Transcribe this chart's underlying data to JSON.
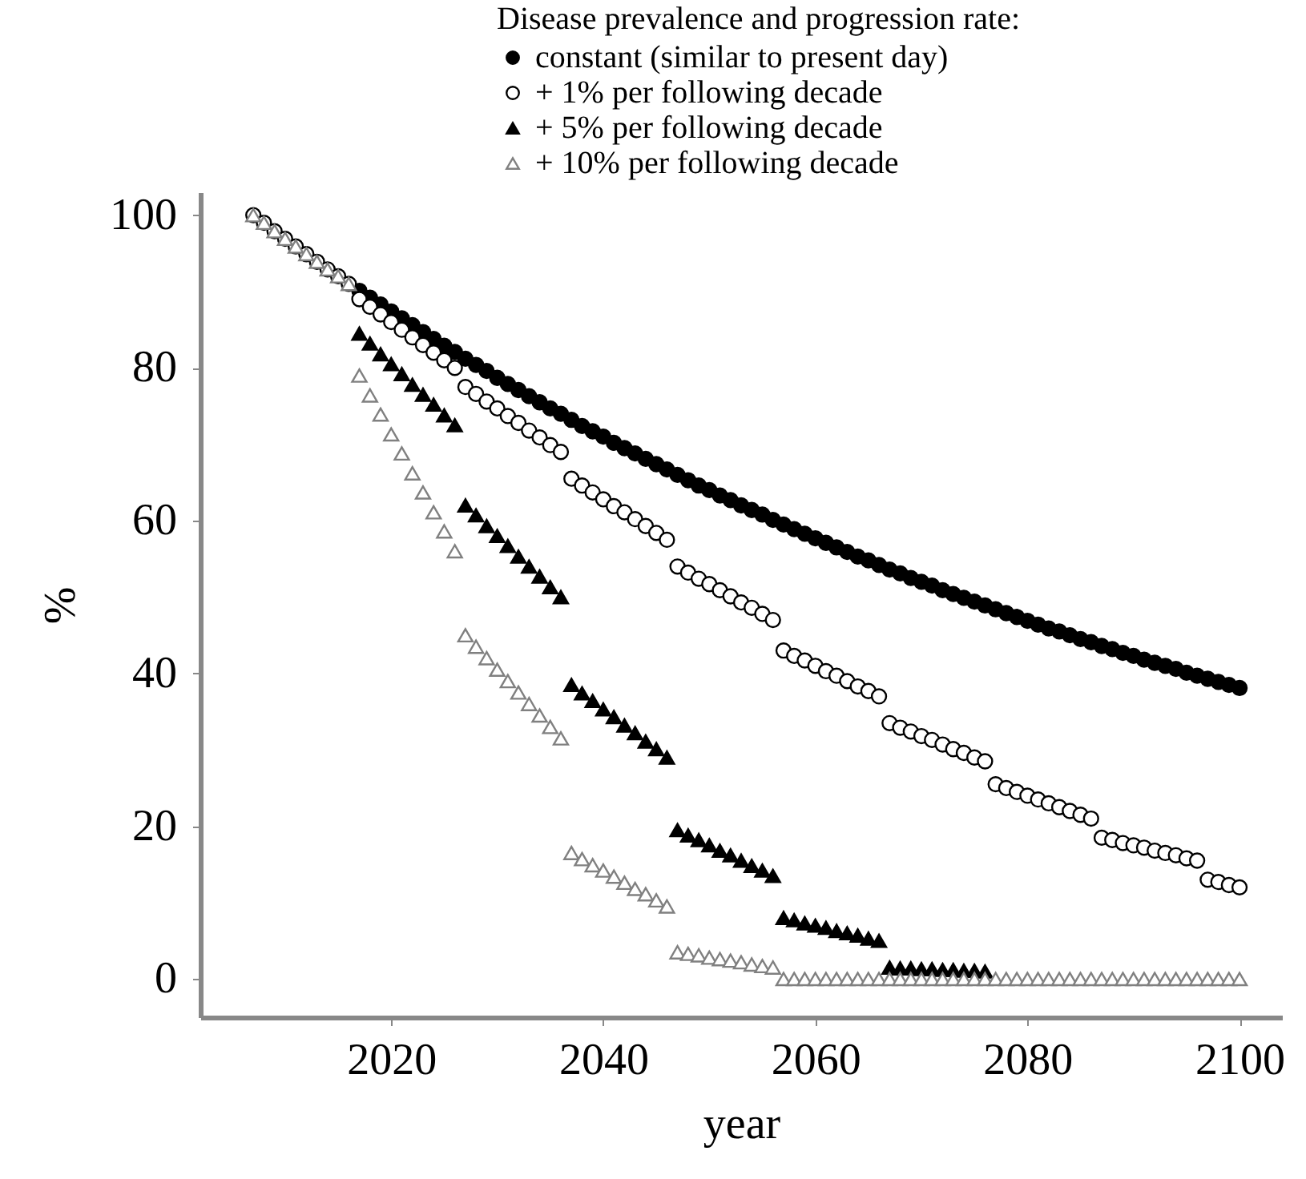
{
  "chart_data": {
    "type": "scatter",
    "xlabel": "year",
    "ylabel": "%",
    "legend_title": "Disease prevalence and progression rate:",
    "legend": "top right",
    "grid": false,
    "x": [
      2007,
      2008,
      2009,
      2010,
      2011,
      2012,
      2013,
      2014,
      2015,
      2016,
      2017,
      2018,
      2019,
      2020,
      2021,
      2022,
      2023,
      2024,
      2025,
      2026,
      2027,
      2028,
      2029,
      2030,
      2031,
      2032,
      2033,
      2034,
      2035,
      2036,
      2037,
      2038,
      2039,
      2040,
      2041,
      2042,
      2043,
      2044,
      2045,
      2046,
      2047,
      2048,
      2049,
      2050,
      2051,
      2052,
      2053,
      2054,
      2055,
      2056,
      2057,
      2058,
      2059,
      2060,
      2061,
      2062,
      2063,
      2064,
      2065,
      2066,
      2067,
      2068,
      2069,
      2070,
      2071,
      2072,
      2073,
      2074,
      2075,
      2076,
      2077,
      2078,
      2079,
      2080,
      2081,
      2082,
      2083,
      2084,
      2085,
      2086,
      2087,
      2088,
      2089,
      2090,
      2091,
      2092,
      2093,
      2094,
      2095,
      2096,
      2097,
      2098,
      2099,
      2100
    ],
    "xlim": [
      2002,
      2104
    ],
    "xticks": [
      2020,
      2040,
      2060,
      2080,
      2100
    ],
    "ylim": [
      -5,
      103
    ],
    "yticks": [
      0,
      20,
      40,
      60,
      80,
      100
    ],
    "series": [
      {
        "name": "constant (similar to present day)",
        "color": "#000000",
        "marker": "circle",
        "values": [
          null,
          null,
          null,
          null,
          null,
          null,
          null,
          null,
          null,
          null,
          90.1,
          89.2,
          88.3,
          87.4,
          86.5,
          85.6,
          84.7,
          83.8,
          82.9,
          82.1,
          81.2,
          80.4,
          79.6,
          78.7,
          77.9,
          77.1,
          76.3,
          75.5,
          74.7,
          74.0,
          73.2,
          72.4,
          71.7,
          71.0,
          70.2,
          69.5,
          68.8,
          68.1,
          67.4,
          66.7,
          66.0,
          65.3,
          64.6,
          64.0,
          63.3,
          62.7,
          62.0,
          61.4,
          60.8,
          60.1,
          59.5,
          58.9,
          58.3,
          57.7,
          57.1,
          56.5,
          55.9,
          55.3,
          54.8,
          54.2,
          53.6,
          53.1,
          52.5,
          52.0,
          51.5,
          50.9,
          50.4,
          49.9,
          49.4,
          48.9,
          48.4,
          47.9,
          47.4,
          46.9,
          46.4,
          45.9,
          45.5,
          45.0,
          44.5,
          44.1,
          43.6,
          43.2,
          42.7,
          42.3,
          41.8,
          41.4,
          41.0,
          40.6,
          40.1,
          39.7,
          39.3,
          38.9,
          38.5,
          38.1
        ]
      },
      {
        "name": "+ 1% per following decade",
        "color": "#000000",
        "marker": "circle",
        "values": [
          100,
          99.0,
          97.9,
          96.9,
          95.9,
          94.9,
          93.9,
          92.9,
          92.0,
          91.0,
          89,
          88,
          87,
          86,
          85,
          84,
          83,
          82,
          81,
          80,
          77.5,
          76.6,
          75.6,
          74.7,
          73.7,
          72.8,
          71.8,
          70.9,
          69.9,
          69.0,
          65.5,
          64.6,
          63.7,
          62.8,
          61.9,
          61.1,
          60.2,
          59.3,
          58.4,
          57.5,
          54.0,
          53.2,
          52.4,
          51.7,
          50.9,
          50.1,
          49.3,
          48.6,
          47.8,
          47.0,
          43.0,
          42.3,
          41.7,
          41.0,
          40.3,
          39.7,
          39.0,
          38.3,
          37.7,
          37.0,
          33.5,
          32.9,
          32.4,
          31.8,
          31.3,
          30.7,
          30.1,
          29.6,
          29.0,
          28.5,
          25.5,
          25.0,
          24.5,
          24.0,
          23.5,
          23.0,
          22.5,
          22.0,
          21.5,
          21.0,
          18.5,
          18.2,
          17.8,
          17.5,
          17.2,
          16.8,
          16.5,
          16.2,
          15.8,
          15.5,
          13.0,
          12.7,
          12.3,
          12.0
        ]
      },
      {
        "name": "+ 5% per following decade",
        "color": "#000000",
        "marker": "triangle",
        "values": [
          null,
          null,
          null,
          null,
          null,
          null,
          null,
          null,
          null,
          null,
          84.5,
          83.2,
          81.8,
          80.5,
          79.2,
          77.8,
          76.5,
          75.2,
          73.8,
          72.5,
          62.0,
          60.7,
          59.3,
          58.0,
          56.7,
          55.3,
          54.0,
          52.7,
          51.3,
          50.0,
          38.5,
          37.4,
          36.4,
          35.3,
          34.3,
          33.2,
          32.2,
          31.1,
          30.1,
          29.0,
          19.5,
          18.8,
          18.2,
          17.5,
          16.8,
          16.2,
          15.5,
          14.8,
          14.2,
          13.5,
          8.0,
          7.7,
          7.3,
          7.0,
          6.7,
          6.3,
          6.0,
          5.7,
          5.3,
          5.0,
          1.5,
          1.4,
          1.4,
          1.3,
          1.3,
          1.2,
          1.2,
          1.1,
          1.1,
          1.0,
          null,
          null,
          null,
          null,
          null,
          null,
          null,
          null,
          null,
          null,
          null,
          null,
          null,
          null,
          null,
          null,
          null,
          null,
          null,
          null,
          null,
          null,
          null,
          null
        ]
      },
      {
        "name": "+ 10% per following decade",
        "color": "#808080",
        "marker": "triangle",
        "values": [
          100,
          99.0,
          97.9,
          96.9,
          95.9,
          94.9,
          93.9,
          92.9,
          92.0,
          91.0,
          79.0,
          76.4,
          73.9,
          71.3,
          68.8,
          66.2,
          63.7,
          61.1,
          58.6,
          56.0,
          45.0,
          43.5,
          42.0,
          40.5,
          39.0,
          37.5,
          36.0,
          34.5,
          33.0,
          31.5,
          16.5,
          15.7,
          14.9,
          14.2,
          13.4,
          12.6,
          11.8,
          11.1,
          10.3,
          9.5,
          3.5,
          3.3,
          3.1,
          2.8,
          2.6,
          2.4,
          2.2,
          1.9,
          1.7,
          1.5,
          0,
          0,
          0,
          0,
          0,
          0,
          0,
          0,
          0,
          0,
          0,
          0,
          0,
          0,
          0,
          0,
          0,
          0,
          0,
          0,
          0,
          0,
          0,
          0,
          0,
          0,
          0,
          0,
          0,
          0,
          0,
          0,
          0,
          0,
          0,
          0,
          0,
          0,
          0,
          0,
          0,
          0,
          0,
          0
        ]
      }
    ]
  }
}
